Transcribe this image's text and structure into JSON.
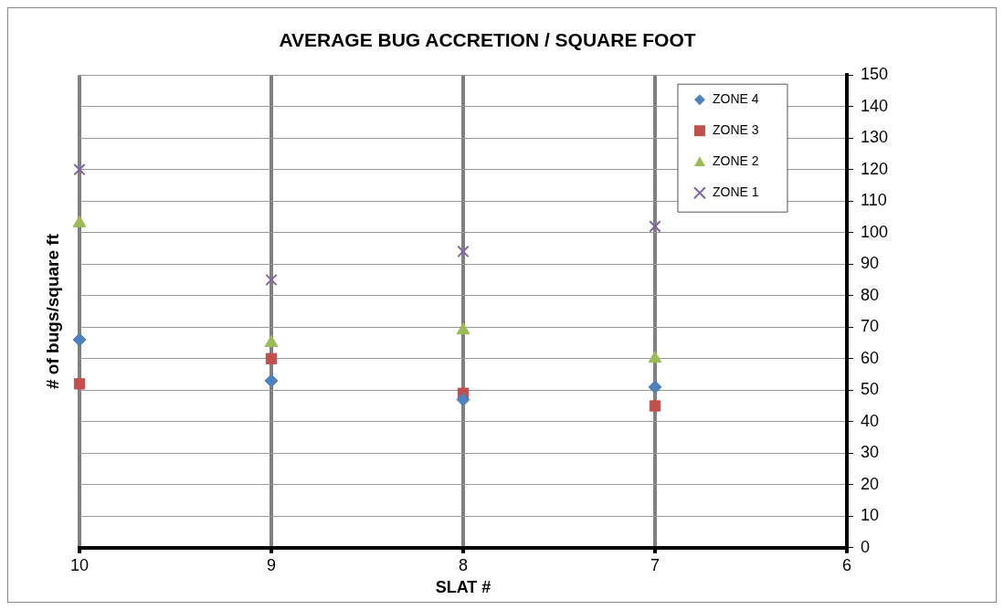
{
  "chart_data": {
    "type": "scatter",
    "title": "AVERAGE BUG ACCRETION / SQUARE FOOT",
    "xlabel": "SLAT #",
    "ylabel": "# of bugs/square ft",
    "x": [
      10,
      9,
      8,
      7
    ],
    "series": [
      {
        "name": "ZONE 4",
        "color": "#4f81bd",
        "marker": "diamond",
        "values": [
          66,
          53,
          47,
          51
        ]
      },
      {
        "name": "ZONE 3",
        "color": "#c0504d",
        "marker": "square",
        "values": [
          52,
          60,
          49,
          45
        ]
      },
      {
        "name": "ZONE 2",
        "color": "#9bbb59",
        "marker": "triangle",
        "values": [
          103,
          65,
          69,
          60
        ]
      },
      {
        "name": "ZONE 1",
        "color": "#8064a2",
        "marker": "cross",
        "values": [
          120,
          85,
          94,
          102
        ]
      }
    ],
    "xlim": [
      10,
      6
    ],
    "xticks": [
      10,
      9,
      8,
      7,
      6
    ],
    "ylim": [
      0,
      150
    ],
    "yticks": [
      0,
      10,
      20,
      30,
      40,
      50,
      60,
      70,
      80,
      90,
      100,
      110,
      120,
      130,
      140,
      150
    ],
    "grid": true,
    "legend": "top right"
  }
}
